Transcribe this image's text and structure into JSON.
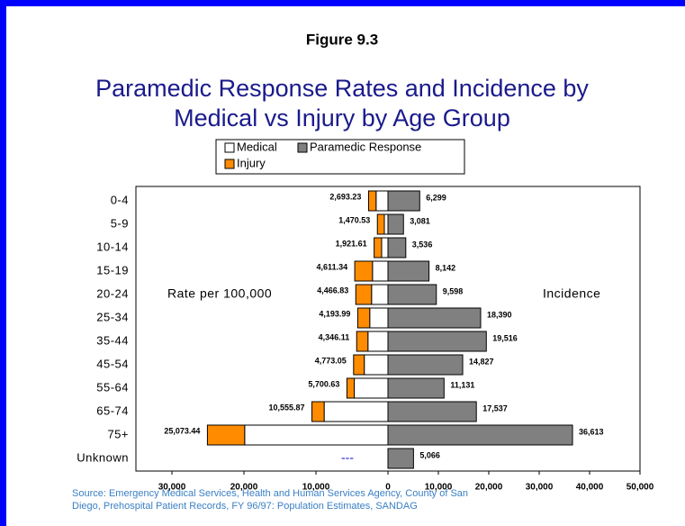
{
  "chart_data": {
    "type": "bar",
    "figure_label": "Figure 9.3",
    "title": [
      "Paramedic Response Rates and Incidence by",
      "Medical vs Injury by Age Group"
    ],
    "left_axis_label": "Rate per 100,000",
    "right_axis_label": "Incidence",
    "categories": [
      "0-4",
      "5-9",
      "10-14",
      "15-19",
      "20-24",
      "25-34",
      "35-44",
      "45-54",
      "55-64",
      "65-74",
      "75+",
      "Unknown"
    ],
    "series": [
      {
        "name": "Medical",
        "color": "#ffffff",
        "side": "left",
        "values": [
          1650,
          500,
          880,
          2150,
          2280,
          2530,
          2780,
          3290,
          4680,
          8860,
          19900,
          null
        ]
      },
      {
        "name": "Injury",
        "color": "#ff8c00",
        "side": "left",
        "values": [
          1043,
          970,
          1040,
          2461,
          2187,
          1664,
          1566,
          1483,
          1021,
          1696,
          5173,
          null
        ]
      },
      {
        "name": "Paramedic Response",
        "color": "#808080",
        "side": "right",
        "values": [
          6299,
          3081,
          3536,
          8142,
          9598,
          18390,
          19516,
          14827,
          11131,
          17537,
          36613,
          5066
        ],
        "value_labels": [
          "6,299",
          "3,081",
          "3,536",
          "8,142",
          "9,598",
          "18,390",
          "19,516",
          "14,827",
          "11,131",
          "17,537",
          "36,613",
          "5,066"
        ]
      }
    ],
    "totals": [
      2693.23,
      1470.53,
      1921.61,
      4611.34,
      4466.83,
      4193.99,
      4346.11,
      4773.05,
      5700.63,
      10555.87,
      25073.44,
      null
    ],
    "total_labels": [
      "2,693.23",
      "1,470.53",
      "1,921.61",
      "4,611.34",
      "4,466.83",
      "4,193.99",
      "4,346.11",
      "4,773.05",
      "5,700.63",
      "10,555.87",
      "25,073.44",
      "---"
    ],
    "xlim_left": [
      0,
      35000
    ],
    "xlim_right": [
      0,
      50000
    ],
    "xticks_left": [
      {
        "value": 30000,
        "label": "30,000"
      },
      {
        "value": 20000,
        "label": "20,000"
      },
      {
        "value": 10000,
        "label": "10,000"
      },
      0
    ],
    "xticks_right": [
      {
        "value": 10000,
        "label": "10,000"
      },
      {
        "value": 20000,
        "label": "20,000"
      },
      {
        "value": 30000,
        "label": "30,000"
      },
      {
        "value": 40000,
        "label": "40,000"
      },
      {
        "value": 50000,
        "label": "50,000"
      }
    ],
    "source": [
      "Source: Emergency Medical Services, Health and Human Services Agency, County of San",
      "Diego, Prehospital Patient Records, FY 96/97: Population Estimates, SANDAG"
    ]
  }
}
